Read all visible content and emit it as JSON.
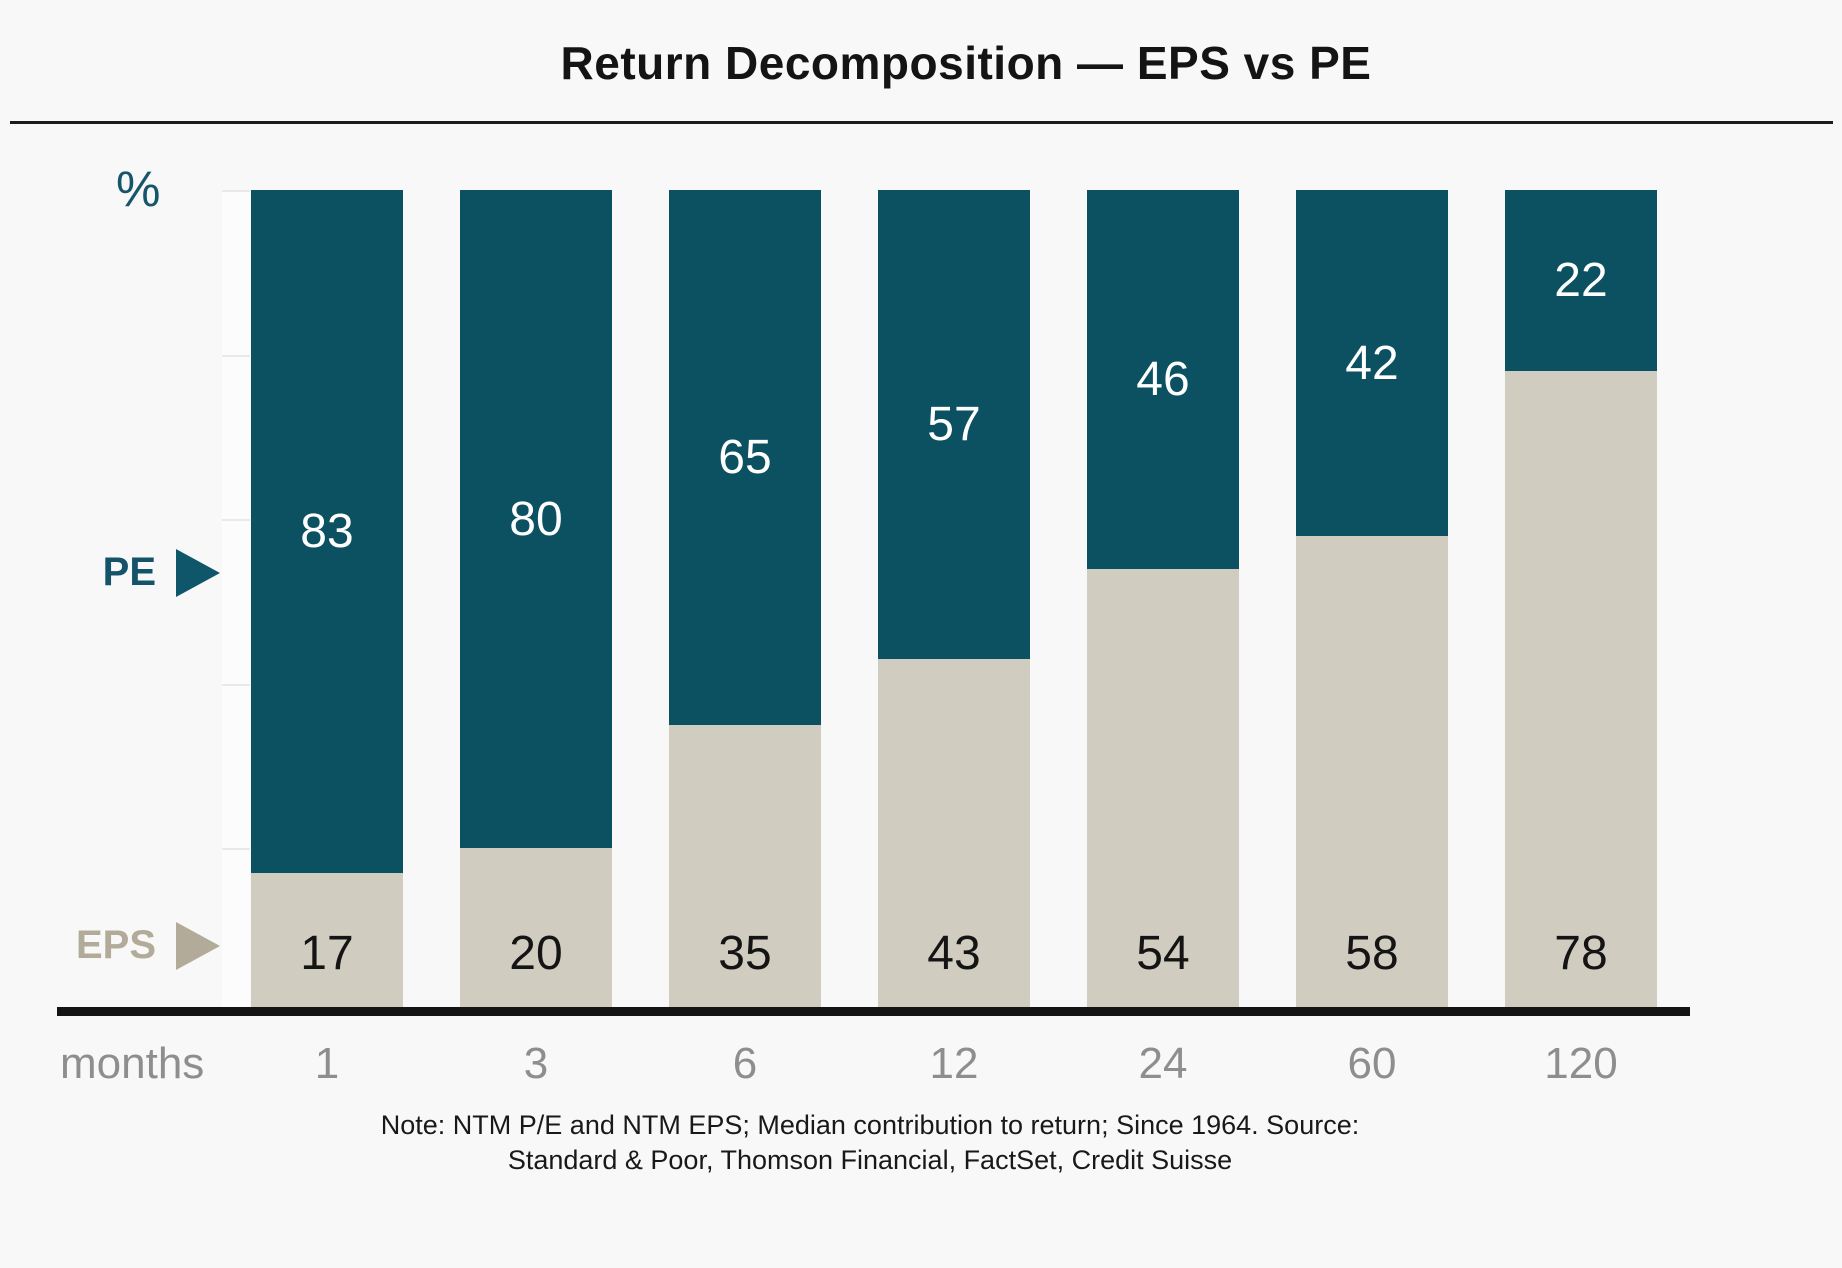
{
  "header": {
    "title": "Return Decomposition — EPS vs PE"
  },
  "axis": {
    "y_unit_label": "%",
    "x_axis_label": "months"
  },
  "legend": {
    "pe_label": "PE",
    "eps_label": "EPS"
  },
  "chart_data": {
    "type": "bar",
    "stacked": true,
    "title": "Return Decomposition — EPS vs PE",
    "xlabel": "months",
    "ylabel": "%",
    "ylim": [
      0,
      100
    ],
    "y_tick_step": 20,
    "grid": "left-tick-strip-only",
    "legend_position": "left-arrow-labels",
    "categories": [
      "1",
      "3",
      "6",
      "12",
      "24",
      "60",
      "120"
    ],
    "series": [
      {
        "name": "EPS",
        "color": "#d1ccc0",
        "values": [
          17,
          20,
          35,
          43,
          54,
          58,
          78
        ]
      },
      {
        "name": "PE",
        "color": "#0b5161",
        "values": [
          83,
          80,
          65,
          57,
          46,
          42,
          22
        ]
      }
    ]
  },
  "note": {
    "line1": "Note: NTM P/E and NTM EPS; Median contribution to return; Since 1964. Source:",
    "line2": "Standard & Poor, Thomson Financial, FactSet, Credit Suisse"
  },
  "colors": {
    "pe_fill": "#0b5161",
    "eps_fill": "#d1ccc0",
    "pe_value_text": "#ffffff",
    "eps_value_text": "#141414",
    "background": "#f8f8f8",
    "axis_strip": "#fcfcfc",
    "tick_line": "#e9e9e9",
    "baseline": "#141414",
    "month_text": "#8e8e8e",
    "eps_label_text": "#b2ab99",
    "pe_label_text": "#15536a",
    "title_text": "#141414"
  }
}
